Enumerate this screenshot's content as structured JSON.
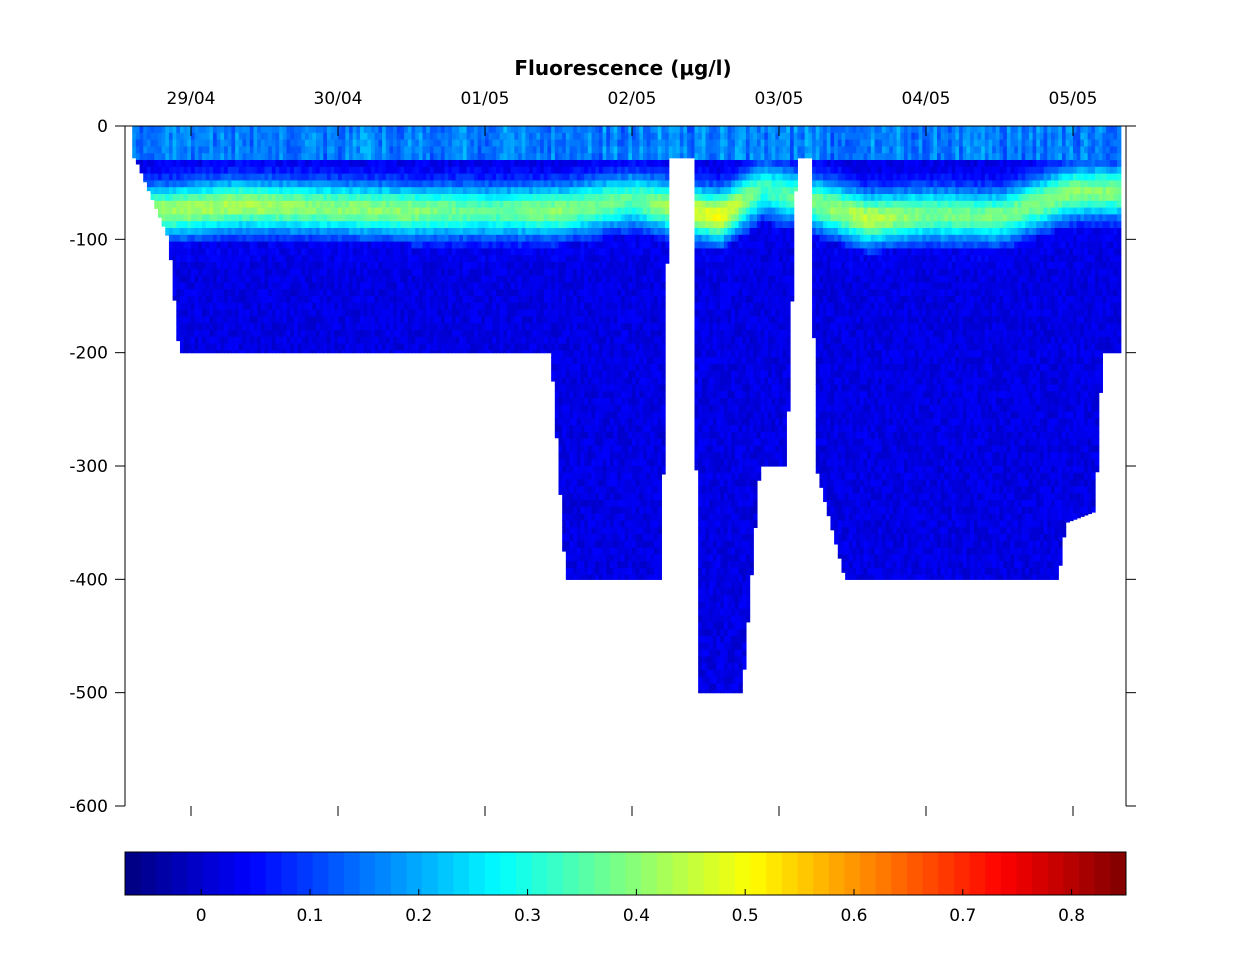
{
  "chart_data": {
    "type": "heatmap",
    "title": "Fluorescence (μg/l)",
    "colormap": "jet",
    "x_axis": {
      "position": "top",
      "type": "date",
      "tick_labels": [
        "29/04",
        "30/04",
        "01/05",
        "02/05",
        "03/05",
        "04/05",
        "05/05"
      ]
    },
    "y_axis": {
      "ylim": [
        -600,
        0
      ],
      "ticks": [
        0,
        -100,
        -200,
        -300,
        -400,
        -500,
        -600
      ],
      "tick_labels": [
        "0",
        "-100",
        "-200",
        "-300",
        "-400",
        "-500",
        "-600"
      ]
    },
    "colorbar": {
      "position": "bottom",
      "clim": [
        -0.07,
        0.85
      ],
      "ticks": [
        0,
        0.1,
        0.2,
        0.3,
        0.4,
        0.5,
        0.6,
        0.7,
        0.8
      ],
      "tick_labels": [
        "0",
        "0.1",
        "0.2",
        "0.3",
        "0.4",
        "0.5",
        "0.6",
        "0.7",
        "0.8"
      ]
    },
    "x_range_days": [
      28.6,
      35.3
    ],
    "profile_bottom_depths": [
      {
        "t": 28.62,
        "depth": -28
      },
      {
        "t": 28.85,
        "depth": -100
      },
      {
        "t": 28.92,
        "depth": -200
      },
      {
        "t": 31.45,
        "depth": -200
      },
      {
        "t": 31.55,
        "depth": -400
      },
      {
        "t": 32.2,
        "depth": -400
      },
      {
        "t": 32.25,
        "depth": -28
      },
      {
        "t": 32.42,
        "depth": -28
      },
      {
        "t": 32.45,
        "depth": -500
      },
      {
        "t": 32.75,
        "depth": -500
      },
      {
        "t": 32.87,
        "depth": -300
      },
      {
        "t": 33.05,
        "depth": -300
      },
      {
        "t": 33.12,
        "depth": -28
      },
      {
        "t": 33.22,
        "depth": -28
      },
      {
        "t": 33.25,
        "depth": -300
      },
      {
        "t": 33.45,
        "depth": -400
      },
      {
        "t": 34.9,
        "depth": -400
      },
      {
        "t": 34.95,
        "depth": -350
      },
      {
        "t": 35.15,
        "depth": -340
      },
      {
        "t": 35.2,
        "depth": -200
      },
      {
        "t": 35.3,
        "depth": -200
      }
    ],
    "chlorophyll_max_layer": [
      {
        "t": 28.85,
        "depth": -75,
        "value": 0.42
      },
      {
        "t": 29.3,
        "depth": -70,
        "value": 0.43
      },
      {
        "t": 29.8,
        "depth": -72,
        "value": 0.4
      },
      {
        "t": 30.5,
        "depth": -75,
        "value": 0.4
      },
      {
        "t": 31.0,
        "depth": -75,
        "value": 0.36
      },
      {
        "t": 31.5,
        "depth": -75,
        "value": 0.4
      },
      {
        "t": 32.0,
        "depth": -65,
        "value": 0.36
      },
      {
        "t": 32.6,
        "depth": -80,
        "value": 0.5
      },
      {
        "t": 32.9,
        "depth": -55,
        "value": 0.33
      },
      {
        "t": 33.6,
        "depth": -82,
        "value": 0.45
      },
      {
        "t": 34.0,
        "depth": -78,
        "value": 0.38
      },
      {
        "t": 34.5,
        "depth": -80,
        "value": 0.38
      },
      {
        "t": 35.0,
        "depth": -58,
        "value": 0.4
      }
    ]
  }
}
